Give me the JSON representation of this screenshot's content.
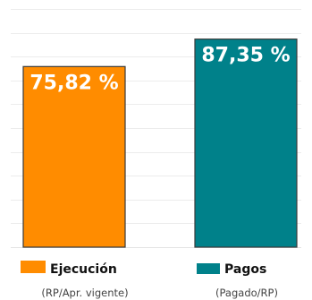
{
  "chart_data": {
    "type": "bar",
    "categories": [
      "Ejecución",
      "Pagos"
    ],
    "series": [
      {
        "values": [
          75.82,
          87.35
        ]
      }
    ],
    "value_labels": [
      "75,82 %",
      "87,35 %"
    ],
    "legend": [
      {
        "label": "Ejecución",
        "sublabel": "(RP/Apr. vigente)",
        "color": "#FF8C00"
      },
      {
        "label": "Pagos",
        "sublabel": "(Pagado/RP)",
        "color": "#00818A"
      }
    ],
    "colors": [
      "#FF8C00",
      "#00818A"
    ],
    "ylim": [
      0,
      100
    ],
    "grid": true,
    "legend_position": "bottom"
  }
}
